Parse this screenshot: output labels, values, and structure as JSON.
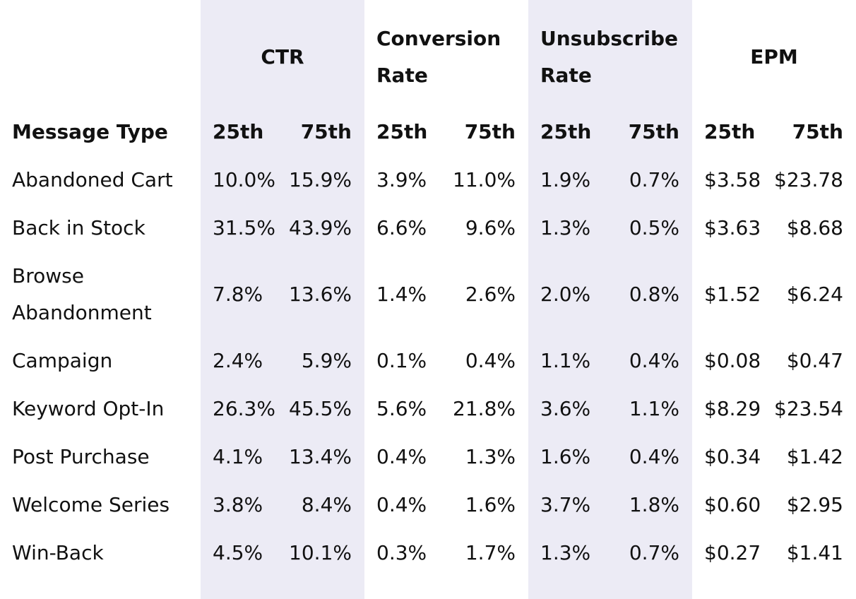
{
  "table": {
    "groups": [
      "CTR",
      "Conversion Rate",
      "Unsubscribe Rate",
      "EPM"
    ],
    "header": [
      "Message Type",
      "25th",
      "75th",
      "25th",
      "75th",
      "25th",
      "75th",
      "25th",
      "75th"
    ],
    "rows": [
      [
        "Abandoned Cart",
        "10.0%",
        "15.9%",
        "3.9%",
        "11.0%",
        "1.9%",
        "0.7%",
        "$3.58",
        "$23.78"
      ],
      [
        "Back in Stock",
        "31.5%",
        "43.9%",
        "6.6%",
        "9.6%",
        "1.3%",
        "0.5%",
        "$3.63",
        "$8.68"
      ],
      [
        "Browse Abandonment",
        "7.8%",
        "13.6%",
        "1.4%",
        "2.6%",
        "2.0%",
        "0.8%",
        "$1.52",
        "$6.24"
      ],
      [
        "Campaign",
        "2.4%",
        "5.9%",
        "0.1%",
        "0.4%",
        "1.1%",
        "0.4%",
        "$0.08",
        "$0.47"
      ],
      [
        "Keyword Opt-In",
        "26.3%",
        "45.5%",
        "5.6%",
        "21.8%",
        "3.6%",
        "1.1%",
        "$8.29",
        "$23.54"
      ],
      [
        "Post Purchase",
        "4.1%",
        "13.4%",
        "0.4%",
        "1.3%",
        "1.6%",
        "0.4%",
        "$0.34",
        "$1.42"
      ],
      [
        "Welcome Series",
        "3.8%",
        "8.4%",
        "0.4%",
        "1.6%",
        "3.7%",
        "1.8%",
        "$0.60",
        "$2.95"
      ],
      [
        "Win-Back",
        "4.5%",
        "10.1%",
        "0.3%",
        "1.7%",
        "1.3%",
        "0.7%",
        "$0.27",
        "$1.41"
      ]
    ]
  }
}
